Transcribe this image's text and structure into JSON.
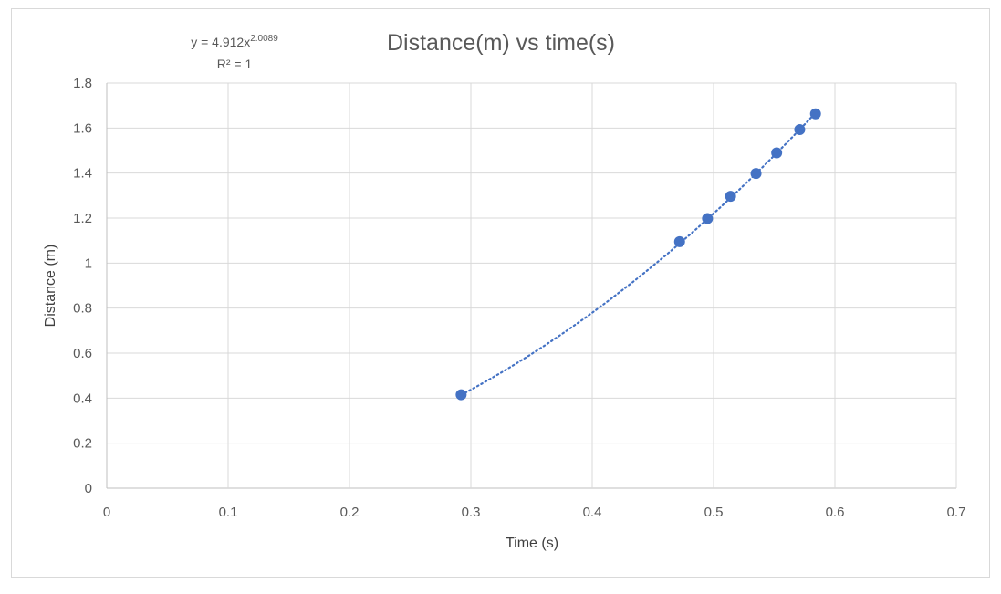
{
  "chart_data": {
    "type": "scatter",
    "title": "Distance(m) vs time(s)",
    "xlabel": "Time (s)",
    "ylabel": "Distance (m)",
    "xlim": [
      0,
      0.7
    ],
    "ylim": [
      0,
      1.8
    ],
    "xticks": [
      0,
      0.1,
      0.2,
      0.3,
      0.4,
      0.5,
      0.6,
      0.7
    ],
    "yticks": [
      0,
      0.2,
      0.4,
      0.6,
      0.8,
      1,
      1.2,
      1.4,
      1.6,
      1.8
    ],
    "grid": true,
    "legend": "none",
    "series": [
      {
        "color": "#4472c4",
        "points": [
          {
            "x": 0.292,
            "y": 0.415
          },
          {
            "x": 0.472,
            "y": 1.095
          },
          {
            "x": 0.495,
            "y": 1.198
          },
          {
            "x": 0.514,
            "y": 1.297
          },
          {
            "x": 0.535,
            "y": 1.398
          },
          {
            "x": 0.552,
            "y": 1.49
          },
          {
            "x": 0.571,
            "y": 1.593
          },
          {
            "x": 0.584,
            "y": 1.663
          }
        ]
      }
    ],
    "trendline": {
      "type": "power",
      "coefficient": 4.912,
      "exponent": 2.0089,
      "x_from": 0.292,
      "x_to": 0.584,
      "color": "#4472c4",
      "style": "dotted",
      "equation_prefix": "y = 4.912x",
      "equation_superscript": "2.0089",
      "r_squared_label": "R² = 1"
    }
  }
}
